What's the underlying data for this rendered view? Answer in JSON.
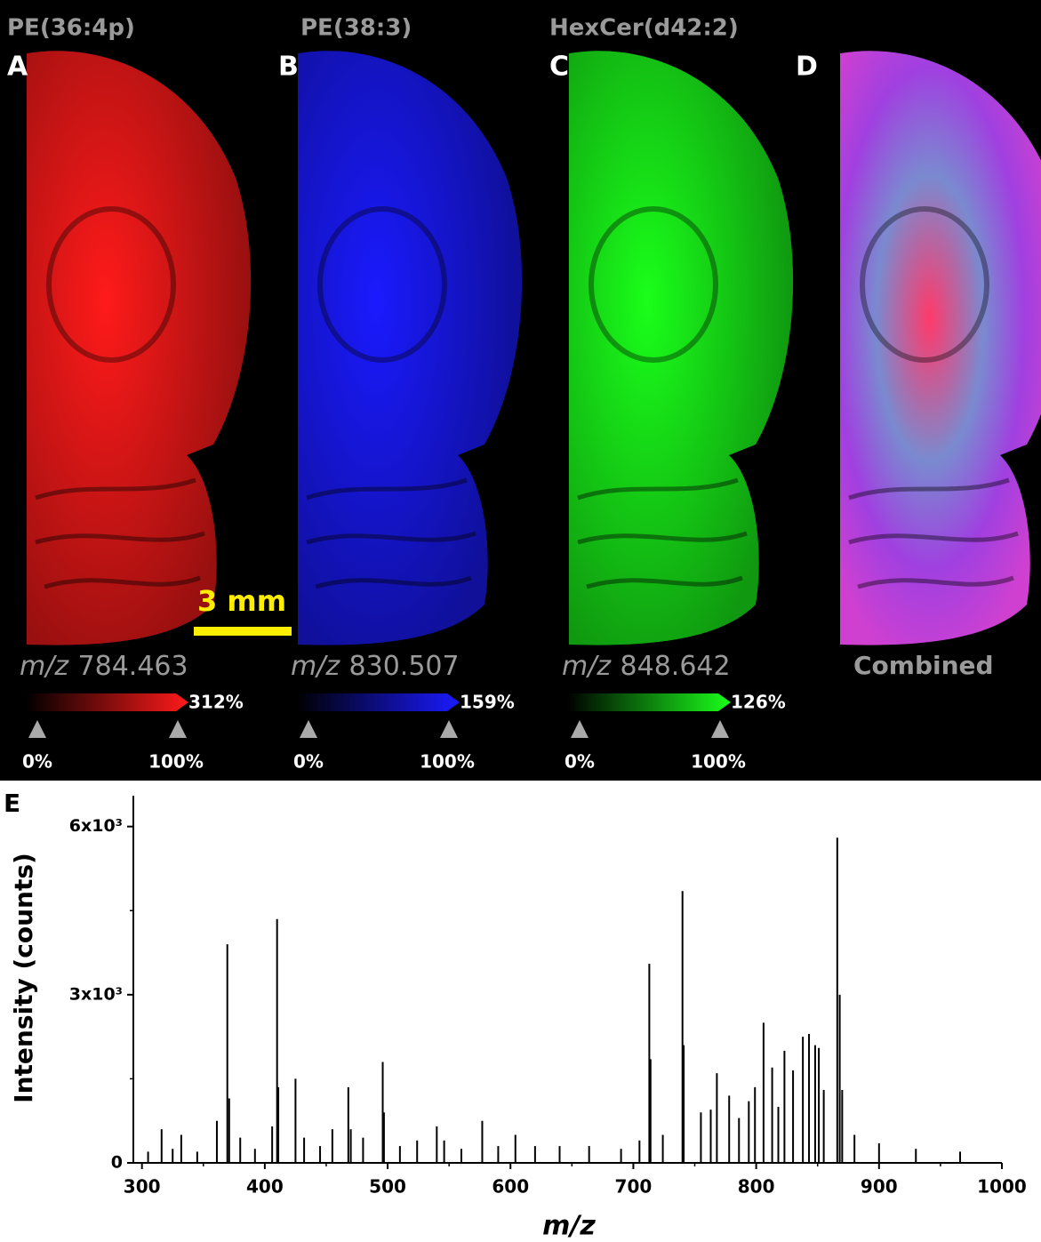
{
  "panels": [
    {
      "letter": "A",
      "title": "PE(36:4p)",
      "mz_prefix": "m/z",
      "mz_value": "784.463",
      "scale_max": "312%",
      "scale_low": "0%",
      "scale_high": "100%",
      "color": "#ff1a1a"
    },
    {
      "letter": "B",
      "title": "PE(38:3)",
      "mz_prefix": "m/z",
      "mz_value": "830.507",
      "scale_max": "159%",
      "scale_low": "0%",
      "scale_high": "100%",
      "color": "#1a1aff"
    },
    {
      "letter": "C",
      "title": "HexCer(d42:2)",
      "mz_prefix": "m/z",
      "mz_value": "848.642",
      "scale_max": "126%",
      "scale_low": "0%",
      "scale_high": "100%",
      "color": "#1aff1a"
    },
    {
      "letter": "D",
      "label": "Combined"
    }
  ],
  "scale_bar": "3 mm",
  "chart_data": {
    "type": "stick",
    "panel_label": "E",
    "x_label": "m/z",
    "y_label": "Intensity (counts)",
    "xlim": [
      293,
      1000
    ],
    "ylim": [
      0,
      6550
    ],
    "xticks": [
      300,
      400,
      500,
      600,
      700,
      800,
      900,
      1000
    ],
    "yticks": [
      0,
      {
        "value": 3000,
        "label": "3x10³"
      },
      {
        "value": 6000,
        "label": "6x10³"
      }
    ],
    "color": "#000000",
    "x": [
      305,
      316,
      325,
      332,
      345,
      361,
      369.5,
      371,
      380,
      392,
      406,
      410,
      411,
      425,
      432,
      445,
      455,
      468,
      470,
      480,
      496,
      497,
      510,
      524,
      540,
      546,
      560,
      577,
      590,
      604,
      620,
      640,
      664,
      690,
      705,
      713,
      714,
      724,
      740,
      741,
      755,
      763,
      768,
      778,
      786,
      794,
      799,
      806,
      813,
      818,
      823,
      830,
      838,
      843,
      848,
      851,
      855,
      866,
      868,
      870,
      880,
      900,
      930,
      966
    ],
    "values": [
      200,
      600,
      250,
      500,
      200,
      750,
      3900,
      1150,
      450,
      250,
      650,
      4350,
      1350,
      1500,
      450,
      300,
      600,
      1350,
      600,
      450,
      1800,
      900,
      300,
      400,
      650,
      400,
      250,
      750,
      300,
      500,
      300,
      300,
      300,
      250,
      400,
      3550,
      1850,
      500,
      4850,
      2100,
      900,
      950,
      1600,
      1200,
      800,
      1100,
      1350,
      2500,
      1700,
      1000,
      2000,
      1650,
      2250,
      2300,
      2100,
      2050,
      1300,
      5800,
      3000,
      1300,
      500,
      350,
      250,
      200
    ]
  }
}
